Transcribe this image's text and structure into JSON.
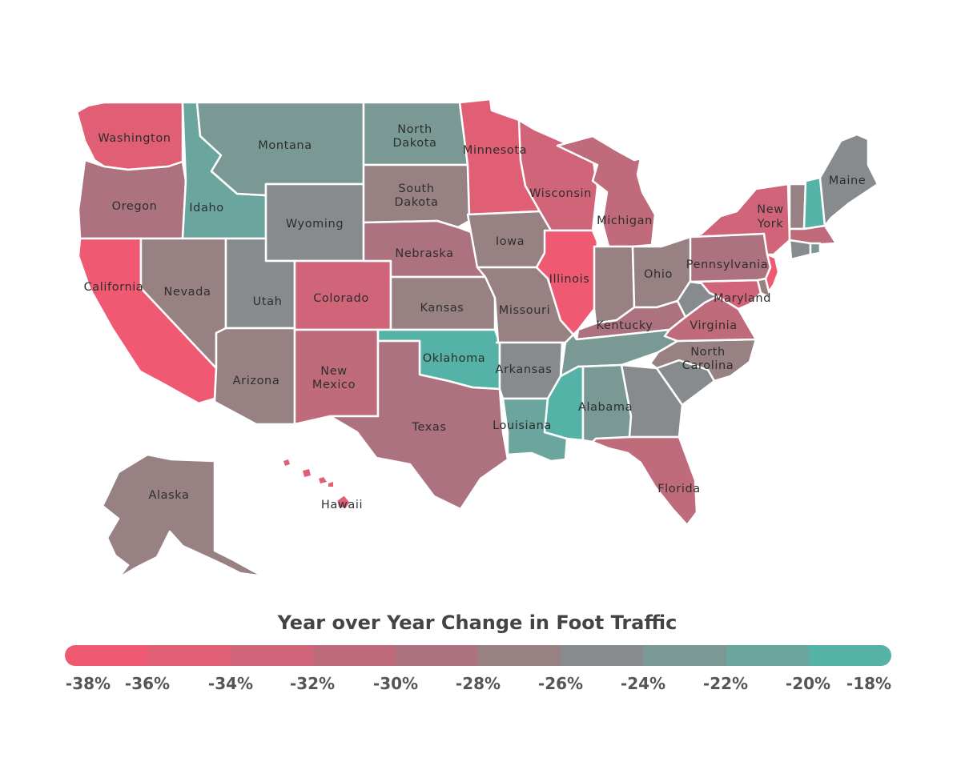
{
  "legend": {
    "title": "Year over Year Change in Foot Traffic",
    "colors": [
      "#ef5a72",
      "#e05f75",
      "#d0657a",
      "#bf6b7c",
      "#ad727f",
      "#988183",
      "#878b8e",
      "#7a9995",
      "#6aa59e",
      "#55b2a6"
    ],
    "ticks": [
      "-38%",
      "-36%",
      "-34%",
      "-32%",
      "-30%",
      "-28%",
      "-26%",
      "-24%",
      "-22%",
      "-20%",
      "-18%"
    ]
  },
  "states": [
    {
      "id": "WA",
      "name": "Washington",
      "color": "#e05f75"
    },
    {
      "id": "OR",
      "name": "Oregon",
      "color": "#ad727f"
    },
    {
      "id": "CA",
      "name": "California",
      "color": "#ef5a72"
    },
    {
      "id": "ID",
      "name": "Idaho",
      "color": "#6aa59e"
    },
    {
      "id": "NV",
      "name": "Nevada",
      "color": "#988183"
    },
    {
      "id": "MT",
      "name": "Montana",
      "color": "#7a9995"
    },
    {
      "id": "WY",
      "name": "Wyoming",
      "color": "#878b8e"
    },
    {
      "id": "UT",
      "name": "Utah",
      "color": "#878b8e"
    },
    {
      "id": "AZ",
      "name": "Arizona",
      "color": "#988183"
    },
    {
      "id": "CO",
      "name": "Colorado",
      "color": "#d0657a"
    },
    {
      "id": "NM",
      "name": "New Mexico",
      "color": "#bf6b7c"
    },
    {
      "id": "ND",
      "name": "North Dakota",
      "color": "#7a9995"
    },
    {
      "id": "SD",
      "name": "South Dakota",
      "color": "#988183"
    },
    {
      "id": "NE",
      "name": "Nebraska",
      "color": "#ad727f"
    },
    {
      "id": "KS",
      "name": "Kansas",
      "color": "#988183"
    },
    {
      "id": "OK",
      "name": "Oklahoma",
      "color": "#55b2a6"
    },
    {
      "id": "TX",
      "name": "Texas",
      "color": "#ad727f"
    },
    {
      "id": "MN",
      "name": "Minnesota",
      "color": "#e05f75"
    },
    {
      "id": "IA",
      "name": "Iowa",
      "color": "#988183"
    },
    {
      "id": "MO",
      "name": "Missouri",
      "color": "#988183"
    },
    {
      "id": "AR",
      "name": "Arkansas",
      "color": "#878b8e"
    },
    {
      "id": "LA",
      "name": "Louisiana",
      "color": "#6aa59e"
    },
    {
      "id": "WI",
      "name": "Wisconsin",
      "color": "#d0657a"
    },
    {
      "id": "IL",
      "name": "Illinois",
      "color": "#ef5a72"
    },
    {
      "id": "MI",
      "name": "Michigan",
      "color": "#bf6b7c"
    },
    {
      "id": "IN",
      "name": "",
      "color": "#988183"
    },
    {
      "id": "OH",
      "name": "Ohio",
      "color": "#988183"
    },
    {
      "id": "KY",
      "name": "Kentucky",
      "color": "#ad727f"
    },
    {
      "id": "TN",
      "name": "",
      "color": "#7a9995"
    },
    {
      "id": "MS",
      "name": "",
      "color": "#55b2a6"
    },
    {
      "id": "AL",
      "name": "Alabama",
      "color": "#7a9995"
    },
    {
      "id": "GA",
      "name": "",
      "color": "#878b8e"
    },
    {
      "id": "FL",
      "name": "Florida",
      "color": "#bf6b7c"
    },
    {
      "id": "SC",
      "name": "",
      "color": "#878b8e"
    },
    {
      "id": "NC",
      "name": "North Carolina",
      "color": "#988183"
    },
    {
      "id": "VA",
      "name": "Virginia",
      "color": "#bf6b7c"
    },
    {
      "id": "WV",
      "name": "",
      "color": "#878b8e"
    },
    {
      "id": "MD",
      "name": "Maryland",
      "color": "#d0657a"
    },
    {
      "id": "DE",
      "name": "",
      "color": "#988183"
    },
    {
      "id": "NJ",
      "name": "",
      "color": "#ef5a72"
    },
    {
      "id": "PA",
      "name": "Pennsylvania",
      "color": "#ad727f"
    },
    {
      "id": "NY",
      "name": "New York",
      "color": "#d0657a"
    },
    {
      "id": "VT",
      "name": "",
      "color": "#988183"
    },
    {
      "id": "NH",
      "name": "",
      "color": "#55b2a6"
    },
    {
      "id": "ME",
      "name": "Maine",
      "color": "#878b8e"
    },
    {
      "id": "MA",
      "name": "",
      "color": "#bf6b7c"
    },
    {
      "id": "CT",
      "name": "",
      "color": "#878b8e"
    },
    {
      "id": "RI",
      "name": "",
      "color": "#7a9995"
    },
    {
      "id": "AK",
      "name": "Alaska",
      "color": "#988183"
    },
    {
      "id": "HI",
      "name": "Hawaii",
      "color": "#e05f75"
    }
  ]
}
